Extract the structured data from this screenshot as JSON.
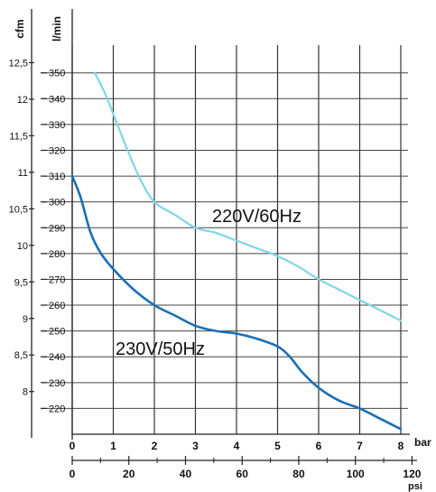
{
  "chart_data": {
    "type": "line",
    "left_axes": {
      "cfm": {
        "label": "cfm",
        "ticks": [
          {
            "value": 12.5,
            "label": "12,5"
          },
          {
            "value": 12,
            "label": "12"
          },
          {
            "value": 11.5,
            "label": "11,5"
          },
          {
            "value": 11,
            "label": "11"
          },
          {
            "value": 10.5,
            "label": "10,5"
          },
          {
            "value": 10,
            "label": "10"
          },
          {
            "value": 9.5,
            "label": "9,5"
          },
          {
            "value": 9,
            "label": "9"
          },
          {
            "value": 8.5,
            "label": "8,5"
          },
          {
            "value": 8,
            "label": "8"
          }
        ]
      },
      "lmin": {
        "label": "l/min",
        "ticks": [
          {
            "value": 350,
            "label": "350"
          },
          {
            "value": 340,
            "label": "340"
          },
          {
            "value": 330,
            "label": "330"
          },
          {
            "value": 320,
            "label": "320"
          },
          {
            "value": 310,
            "label": "310"
          },
          {
            "value": 300,
            "label": "300"
          },
          {
            "value": 290,
            "label": "290"
          },
          {
            "value": 280,
            "label": "280"
          },
          {
            "value": 270,
            "label": "270"
          },
          {
            "value": 260,
            "label": "260"
          },
          {
            "value": 250,
            "label": "250"
          },
          {
            "value": 240,
            "label": "240"
          },
          {
            "value": 230,
            "label": "230"
          },
          {
            "value": 220,
            "label": "220"
          }
        ],
        "ylim": [
          210,
          352
        ]
      }
    },
    "bottom_axes": {
      "bar": {
        "label": "bar",
        "ticks": [
          {
            "value": 0,
            "label": "0"
          },
          {
            "value": 1,
            "label": "1"
          },
          {
            "value": 2,
            "label": "2"
          },
          {
            "value": 3,
            "label": "3"
          },
          {
            "value": 4,
            "label": "4"
          },
          {
            "value": 5,
            "label": "5"
          },
          {
            "value": 6,
            "label": "6"
          },
          {
            "value": 7,
            "label": "7"
          },
          {
            "value": 8,
            "label": "8"
          }
        ],
        "xlim": [
          0,
          8
        ]
      },
      "psi": {
        "label": "psi",
        "ticks": [
          {
            "value": 0,
            "label": "0"
          },
          {
            "value": 20,
            "label": "20"
          },
          {
            "value": 40,
            "label": "40"
          },
          {
            "value": 60,
            "label": "60"
          },
          {
            "value": 80,
            "label": "80"
          },
          {
            "value": 100,
            "label": "100"
          },
          {
            "value": 120,
            "label": "120"
          }
        ]
      }
    },
    "grid": true,
    "series": [
      {
        "name": "220V/60Hz",
        "color": "#7fd6e6",
        "points": [
          [
            0.55,
            350
          ],
          [
            0.8,
            342
          ],
          [
            1.05,
            332
          ],
          [
            1.35,
            320
          ],
          [
            1.65,
            309
          ],
          [
            2.0,
            300
          ],
          [
            2.5,
            295
          ],
          [
            3.0,
            290
          ],
          [
            3.5,
            288
          ],
          [
            4.0,
            285
          ],
          [
            4.5,
            282
          ],
          [
            5.0,
            279
          ],
          [
            5.5,
            275
          ],
          [
            6.0,
            270
          ],
          [
            6.5,
            266
          ],
          [
            7.0,
            262
          ],
          [
            7.5,
            258
          ],
          [
            8.0,
            254
          ]
        ]
      },
      {
        "name": "230V/50Hz",
        "color": "#1a6fb5",
        "points": [
          [
            0.0,
            310
          ],
          [
            0.2,
            302
          ],
          [
            0.45,
            288
          ],
          [
            0.7,
            280
          ],
          [
            1.0,
            274
          ],
          [
            1.5,
            266
          ],
          [
            2.0,
            260
          ],
          [
            2.5,
            256
          ],
          [
            3.0,
            252
          ],
          [
            3.5,
            250
          ],
          [
            4.0,
            249
          ],
          [
            4.5,
            247
          ],
          [
            5.0,
            244
          ],
          [
            5.3,
            240
          ],
          [
            5.6,
            234
          ],
          [
            6.0,
            228
          ],
          [
            6.5,
            223
          ],
          [
            7.0,
            220
          ],
          [
            7.5,
            216
          ],
          [
            8.0,
            212
          ]
        ]
      }
    ]
  }
}
